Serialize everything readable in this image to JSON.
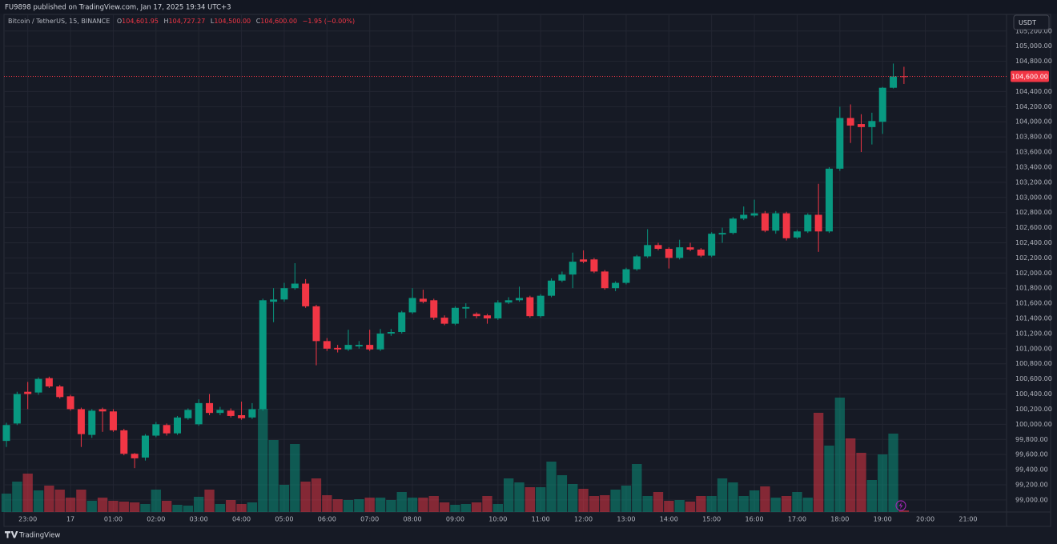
{
  "header": {
    "publisher": "FU9898 published on TradingView.com, Jan 17, 2025 19:34 UTC+3"
  },
  "footer": {
    "brand": "TradingView"
  },
  "chart_data": {
    "type": "candlestick",
    "symbol": "Bitcoin / TetherUS, 15, BINANCE",
    "legend": [
      {
        "key": "O",
        "value": "104,601.95"
      },
      {
        "key": "H",
        "value": "104,727.27"
      },
      {
        "key": "L",
        "value": "104,500.00"
      },
      {
        "key": "C",
        "value": "104,600.00"
      }
    ],
    "change": "−1.95 (−0.00%)",
    "currency": "USDT",
    "up_color": "#089981",
    "down_color": "#f23645",
    "last_price": {
      "value": 104600,
      "label": "104,600.00"
    },
    "xlim": [
      -0.225,
      93.6
    ],
    "xticks": [
      {
        "value": 2,
        "label": "23:00"
      },
      {
        "value": 6,
        "label": "17"
      },
      {
        "value": 10,
        "label": "01:00"
      },
      {
        "value": 14,
        "label": "02:00"
      },
      {
        "value": 18,
        "label": "03:00"
      },
      {
        "value": 22,
        "label": "04:00"
      },
      {
        "value": 26,
        "label": "05:00"
      },
      {
        "value": 30,
        "label": "06:00"
      },
      {
        "value": 34,
        "label": "07:00"
      },
      {
        "value": 38,
        "label": "08:00"
      },
      {
        "value": 42,
        "label": "09:00"
      },
      {
        "value": 46,
        "label": "10:00"
      },
      {
        "value": 50,
        "label": "11:00"
      },
      {
        "value": 54,
        "label": "12:00"
      },
      {
        "value": 58,
        "label": "13:00"
      },
      {
        "value": 62,
        "label": "14:00"
      },
      {
        "value": 66,
        "label": "15:00"
      },
      {
        "value": 70,
        "label": "16:00"
      },
      {
        "value": 74,
        "label": "17:00"
      },
      {
        "value": 78,
        "label": "18:00"
      },
      {
        "value": 82,
        "label": "19:00"
      },
      {
        "value": 86,
        "label": "20:00"
      },
      {
        "value": 90,
        "label": "21:00"
      }
    ],
    "ylim": [
      98840,
      105420
    ],
    "yticks": [
      {
        "value": 99000,
        "label": "99,000.00"
      },
      {
        "value": 99200,
        "label": "99,200.00"
      },
      {
        "value": 99400,
        "label": "99,400.00"
      },
      {
        "value": 99600,
        "label": "99,600.00"
      },
      {
        "value": 99800,
        "label": "99,800.00"
      },
      {
        "value": 100000,
        "label": "100,000.00"
      },
      {
        "value": 100200,
        "label": "100,200.00"
      },
      {
        "value": 100400,
        "label": "100,400.00"
      },
      {
        "value": 100600,
        "label": "100,600.00"
      },
      {
        "value": 100800,
        "label": "100,800.00"
      },
      {
        "value": 101000,
        "label": "101,000.00"
      },
      {
        "value": 101200,
        "label": "101,200.00"
      },
      {
        "value": 101400,
        "label": "101,400.00"
      },
      {
        "value": 101600,
        "label": "101,600.00"
      },
      {
        "value": 101800,
        "label": "101,800.00"
      },
      {
        "value": 102000,
        "label": "102,000.00"
      },
      {
        "value": 102200,
        "label": "102,200.00"
      },
      {
        "value": 102400,
        "label": "102,400.00"
      },
      {
        "value": 102600,
        "label": "102,600.00"
      },
      {
        "value": 102800,
        "label": "102,800.00"
      },
      {
        "value": 103000,
        "label": "103,000.00"
      },
      {
        "value": 103200,
        "label": "103,200.00"
      },
      {
        "value": 103400,
        "label": "103,400.00"
      },
      {
        "value": 103600,
        "label": "103,600.00"
      },
      {
        "value": 103800,
        "label": "103,800.00"
      },
      {
        "value": 104000,
        "label": "104,000.00"
      },
      {
        "value": 104200,
        "label": "104,200.00"
      },
      {
        "value": 104400,
        "label": "104,400.00"
      },
      {
        "value": 104800,
        "label": "104,800.00"
      },
      {
        "value": 105000,
        "label": "105,000.00"
      },
      {
        "value": 105200,
        "label": "105,200.00"
      }
    ],
    "grid": true,
    "open": [
      99780,
      100010,
      100430,
      100420,
      100610,
      100500,
      100370,
      100200,
      99860,
      100200,
      100170,
      99920,
      99610,
      99560,
      99850,
      99990,
      99880,
      100080,
      100000,
      100280,
      100150,
      100180,
      100120,
      100090,
      100200,
      101620,
      101650,
      101800,
      101860,
      101560,
      101100,
      101010,
      100990,
      101030,
      101050,
      100990,
      101200,
      101220,
      101480,
      101660,
      101640,
      101410,
      101330,
      101530,
      101460,
      101440,
      101400,
      101610,
      101640,
      101680,
      101430,
      101700,
      101900,
      101980,
      102180,
      102180,
      102020,
      101800,
      101870,
      102050,
      102220,
      102370,
      102320,
      102200,
      102340,
      102310,
      102230,
      102510,
      102530,
      102720,
      102760,
      102790,
      102560,
      102790,
      102470,
      102550,
      102770,
      102550,
      103380,
      104050,
      103970,
      103930,
      104000,
      104450,
      104601.95
    ],
    "high": [
      100020,
      100430,
      100560,
      100620,
      100630,
      100520,
      100390,
      100220,
      100200,
      100220,
      100200,
      99940,
      99620,
      99870,
      100030,
      100010,
      100110,
      100210,
      100330,
      100400,
      100230,
      100210,
      100300,
      100280,
      101660,
      101800,
      101870,
      102130,
      101920,
      101580,
      101140,
      101050,
      101250,
      101100,
      101250,
      101260,
      101260,
      101500,
      101800,
      101780,
      101660,
      101440,
      101560,
      101600,
      101480,
      101460,
      101640,
      101680,
      101820,
      101700,
      101720,
      101930,
      102020,
      102270,
      102300,
      102200,
      102040,
      101890,
      102070,
      102240,
      102580,
      102400,
      102340,
      102440,
      102400,
      102330,
      102540,
      102600,
      102740,
      102880,
      102970,
      102820,
      102820,
      102810,
      102570,
      102790,
      103180,
      103400,
      104200,
      104230,
      104100,
      104120,
      104460,
      104770,
      104727.27
    ],
    "low": [
      99700,
      99990,
      100200,
      100390,
      100480,
      100340,
      100180,
      99700,
      99820,
      99900,
      99900,
      99590,
      99420,
      99520,
      99830,
      99850,
      99860,
      100060,
      99980,
      100120,
      100120,
      100090,
      100060,
      100070,
      100180,
      101350,
      101620,
      101780,
      101540,
      100780,
      100970,
      100950,
      100970,
      101000,
      100970,
      100970,
      101170,
      101200,
      101460,
      101600,
      101380,
      101310,
      101310,
      101400,
      101400,
      101330,
      101380,
      101590,
      101620,
      101410,
      101410,
      101680,
      101880,
      101800,
      102130,
      102000,
      101780,
      101760,
      101850,
      102030,
      102200,
      102300,
      102060,
      102180,
      102290,
      102210,
      102210,
      102400,
      102510,
      102700,
      102740,
      102540,
      102520,
      102430,
      102450,
      102530,
      102280,
      102530,
      103350,
      103720,
      103600,
      103700,
      103840,
      104440,
      104500
    ],
    "close": [
      99990,
      100400,
      100400,
      100600,
      100500,
      100360,
      100200,
      99870,
      100180,
      100170,
      99920,
      99610,
      99550,
      99850,
      100000,
      99880,
      100090,
      100190,
      100280,
      100150,
      100190,
      100110,
      100080,
      100200,
      101640,
      101650,
      101800,
      101860,
      101560,
      101100,
      101000,
      100990,
      101050,
      101050,
      100990,
      101200,
      101220,
      101480,
      101670,
      101620,
      101410,
      101330,
      101540,
      101550,
      101430,
      101400,
      101610,
      101640,
      101670,
      101430,
      101700,
      101900,
      101980,
      102150,
      102150,
      102020,
      101800,
      101870,
      102050,
      102220,
      102370,
      102320,
      102200,
      102340,
      102310,
      102230,
      102520,
      102530,
      102720,
      102770,
      102790,
      102560,
      102790,
      102460,
      102550,
      102770,
      102550,
      103380,
      104050,
      103950,
      103930,
      104010,
      104450,
      104600,
      104600
    ],
    "volume_lim": [
      0,
      622
    ],
    "volume": [
      23,
      38,
      48,
      27,
      33,
      28,
      18,
      28,
      14,
      18,
      14,
      13,
      12,
      10,
      28,
      14,
      9,
      8,
      19,
      28,
      10,
      15,
      10,
      12,
      129,
      90,
      34,
      85,
      38,
      42,
      21,
      16,
      15,
      16,
      18,
      18,
      15,
      25,
      18,
      18,
      20,
      12,
      9,
      10,
      12,
      20,
      10,
      42,
      37,
      31,
      31,
      63,
      46,
      35,
      29,
      20,
      21,
      28,
      33,
      60,
      20,
      25,
      14,
      15,
      13,
      20,
      20,
      42,
      37,
      20,
      27,
      32,
      18,
      20,
      25,
      18,
      124,
      83,
      143,
      92,
      74,
      40,
      72,
      98,
      2
    ]
  }
}
